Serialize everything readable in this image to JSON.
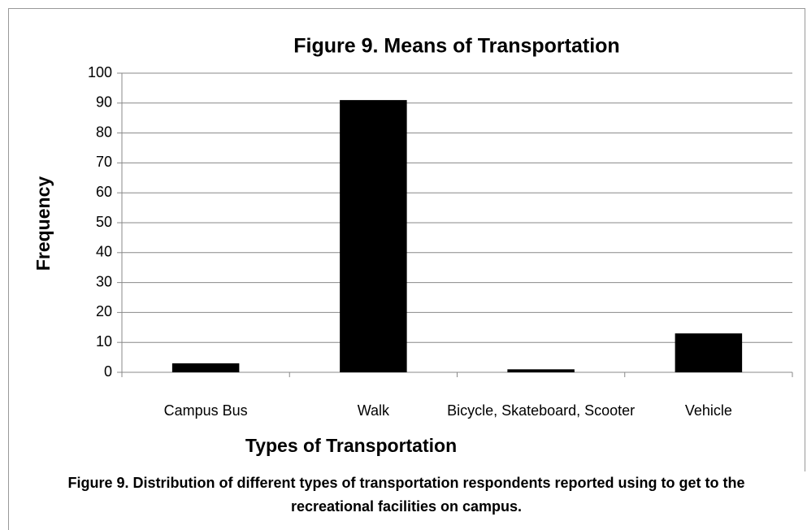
{
  "chart_data": {
    "type": "bar",
    "title": "Figure 9. Means of Transportation",
    "x_label": "Types of Transportation",
    "y_label": "Frequency",
    "categories": [
      "Campus Bus",
      "Walk",
      "Bicycle, Skateboard, Scooter",
      "Vehicle"
    ],
    "values": [
      3,
      91,
      1,
      13
    ],
    "color": "#000000",
    "ylim": [
      0,
      100
    ],
    "yticks": [
      0,
      10,
      20,
      30,
      40,
      50,
      60,
      70,
      80,
      90,
      100
    ],
    "grid": true,
    "caption": "Figure 9. Distribution of different types of transportation respondents reported using to get to the recreational facilities on campus."
  }
}
